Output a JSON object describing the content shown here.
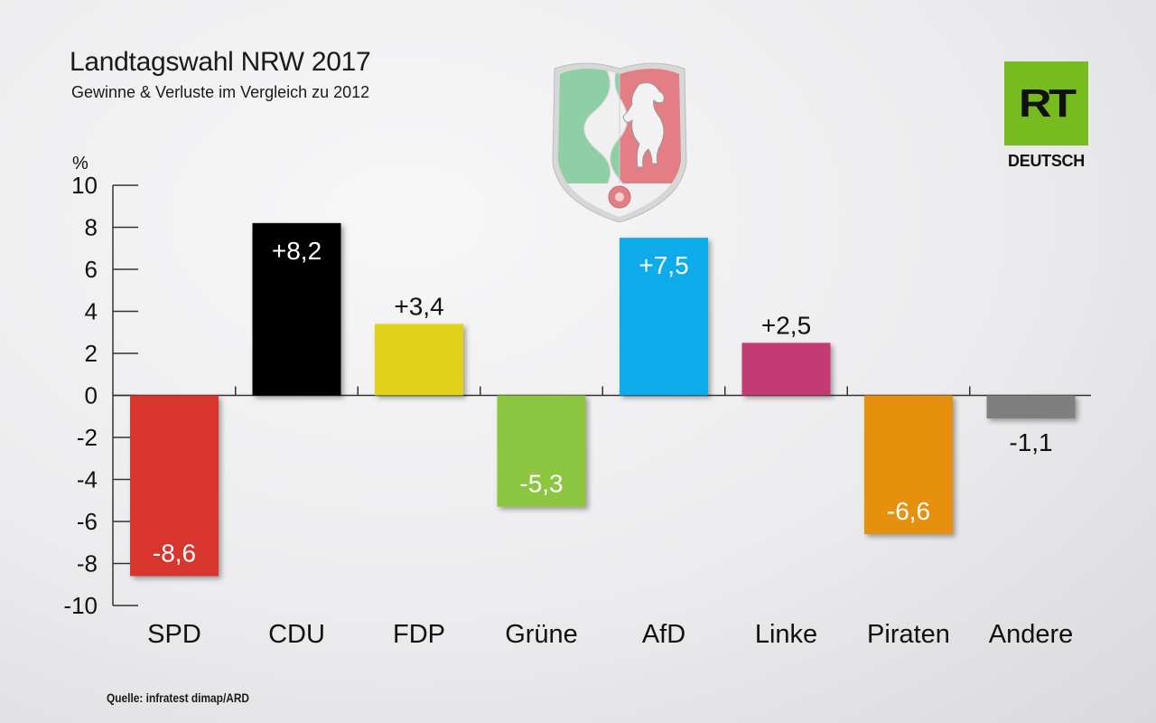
{
  "header": {
    "title": "Landtagswahl NRW 2017",
    "subtitle": "Gewinne & Verluste im Vergleich zu 2012"
  },
  "footer": {
    "source": "Quelle: infratest dimap/ARD"
  },
  "logo": {
    "mark": "RT",
    "sub": "DEUTSCH",
    "color": "#77bc1f",
    "icon": "rt-logo-icon"
  },
  "crest": {
    "icon": "nrw-coat-of-arms-icon",
    "colors": {
      "green": "#8fcfa6",
      "red": "#e27e84",
      "silver": "#d5d5d5"
    }
  },
  "chart_data": {
    "type": "bar",
    "title": "Landtagswahl NRW 2017",
    "subtitle": "Gewinne & Verluste im Vergleich zu 2012",
    "ylabel": "%",
    "ylim": [
      -10,
      10
    ],
    "yticks": [
      "10",
      "8",
      "6",
      "4",
      "2",
      "0",
      "-2",
      "-4",
      "-6",
      "-8",
      "-10"
    ],
    "categories": [
      "SPD",
      "CDU",
      "FDP",
      "Grüne",
      "AfD",
      "Linke",
      "Piraten",
      "Andere"
    ],
    "values": [
      -8.6,
      8.2,
      3.4,
      -5.3,
      7.5,
      2.5,
      -6.6,
      -1.1
    ],
    "labels": [
      "-8,6",
      "+8,2",
      "+3,4",
      "-5,3",
      "+7,5",
      "+2,5",
      "-6,6",
      "-1,1"
    ],
    "colors": [
      "#d8362f",
      "#000000",
      "#e2d11c",
      "#8cc63f",
      "#0fabe9",
      "#c23a75",
      "#e69110",
      "#7f7f7f"
    ],
    "grid": false
  }
}
